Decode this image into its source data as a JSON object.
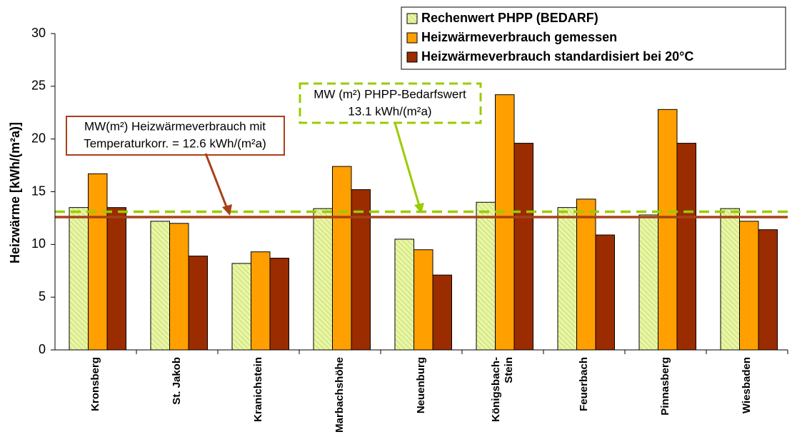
{
  "chart_data": {
    "type": "bar",
    "ylabel": "Heizwärme [kWh/(m²a)]",
    "categories": [
      "Kronsberg",
      "St. Jakob",
      "Kranichstein",
      "Marbachshöhe",
      "Neuenburg",
      "Königsbach-\nStein",
      "Feuerbach",
      "Pinnasberg",
      "Wiesbaden"
    ],
    "series": [
      {
        "name": "Rechenwert PHPP (BEDARF)",
        "color": "#e8f5a8",
        "values": [
          13.5,
          12.2,
          8.2,
          13.4,
          10.5,
          14.0,
          13.5,
          12.8,
          13.4
        ]
      },
      {
        "name": "Heizwärmeverbrauch gemessen",
        "color": "#ff9f00",
        "values": [
          16.7,
          12.0,
          9.3,
          17.4,
          9.5,
          24.2,
          14.3,
          22.8,
          12.2
        ]
      },
      {
        "name": "Heizwärmeverbrauch standardisiert bei 20°C",
        "color": "#9a2c00",
        "values": [
          13.5,
          8.9,
          8.7,
          15.2,
          7.1,
          19.6,
          10.9,
          19.6,
          11.4
        ]
      }
    ],
    "reference_lines": [
      {
        "value": 12.6,
        "color": "#a8401a",
        "dashed": false,
        "label": [
          "MW(m²) Heizwärmeverbrauch mit",
          "Temperaturkorr. = 12.6 kWh/(m²a)"
        ]
      },
      {
        "value": 13.1,
        "color": "#99cc00",
        "dashed": true,
        "label": [
          "MW (m²) PHPP-Bedarfswert",
          "13.1 kWh/(m²a)"
        ]
      }
    ],
    "ylim": [
      0,
      30
    ],
    "yticks": [
      0,
      5,
      10,
      15,
      20,
      25,
      30
    ],
    "grid": false,
    "legend": "top-right"
  }
}
